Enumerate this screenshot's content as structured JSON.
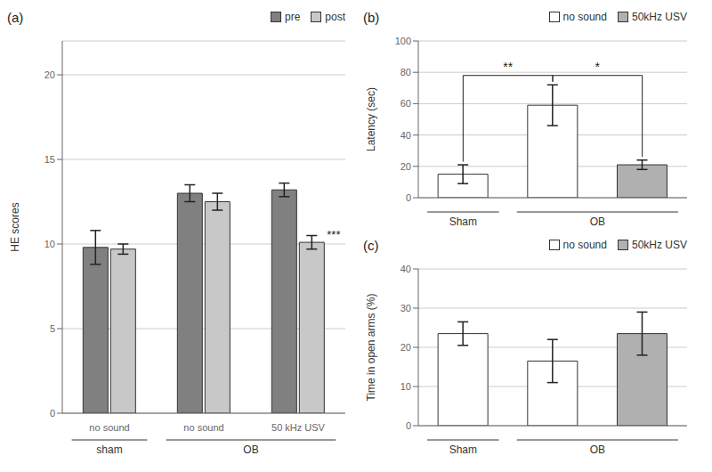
{
  "chart_data": [
    {
      "type": "bar",
      "title": "(a)",
      "categories": [
        "no sound",
        "no sound",
        "50 kHz USV"
      ],
      "category_groups": [
        "sham",
        "OB",
        "OB"
      ],
      "series": [
        {
          "name": "pre",
          "color": "#808080",
          "values": [
            9.8,
            13.0,
            13.2
          ],
          "errors": [
            1.0,
            0.5,
            0.4
          ]
        },
        {
          "name": "post",
          "color": "#c8c8c8",
          "values": [
            9.7,
            12.5,
            10.1
          ],
          "errors": [
            0.3,
            0.5,
            0.4
          ]
        }
      ],
      "ylabel": "HE scores",
      "ylim": [
        0,
        22
      ],
      "yticks": [
        0,
        5,
        10,
        15,
        20
      ],
      "grid": true,
      "legend": "upper right",
      "annotations": [
        {
          "text": "***",
          "category": 2,
          "series": "post"
        }
      ]
    },
    {
      "type": "bar",
      "title": "(b)",
      "categories": [
        null,
        null,
        null
      ],
      "category_groups": [
        "Sham",
        "OB",
        "OB"
      ],
      "series": [
        {
          "name": "no sound",
          "color": "white",
          "values": [
            15,
            59,
            null
          ],
          "errors": [
            6,
            13,
            null
          ]
        },
        {
          "name": "50kHz USV",
          "color": "#b0b0b0",
          "values": [
            null,
            null,
            21
          ],
          "errors": [
            null,
            null,
            3
          ]
        }
      ],
      "ylabel": "Latency (sec)",
      "ylim": [
        0,
        100
      ],
      "yticks": [
        0,
        20,
        40,
        60,
        80,
        100
      ],
      "grid": true,
      "legend": "upper right",
      "annotations": [
        {
          "text": "**",
          "from": 0,
          "to": 1
        },
        {
          "text": "*",
          "from": 1,
          "to": 2
        }
      ]
    },
    {
      "type": "bar",
      "title": "(c)",
      "categories": [
        null,
        null,
        null
      ],
      "category_groups": [
        "Sham",
        "OB",
        "OB"
      ],
      "series": [
        {
          "name": "no sound",
          "color": "white",
          "values": [
            23.5,
            16.5,
            null
          ],
          "errors": [
            3.0,
            5.5,
            null
          ]
        },
        {
          "name": "50kHz USV",
          "color": "#b0b0b0",
          "values": [
            null,
            null,
            23.5
          ],
          "errors": [
            null,
            null,
            5.5
          ]
        }
      ],
      "ylabel": "Time in open arms (%)",
      "ylim": [
        0,
        40
      ],
      "yticks": [
        0,
        10,
        20,
        30,
        40
      ],
      "grid": true,
      "legend": "upper right"
    }
  ]
}
